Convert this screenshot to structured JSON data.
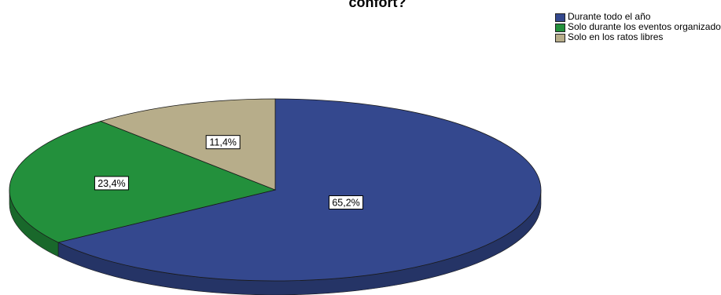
{
  "chart_data": {
    "type": "pie",
    "title": "confort?",
    "legend_position": "top-right",
    "categories": [
      "Durante todo el año",
      "Solo durante los eventos organizados",
      "Solo en los ratos libres"
    ],
    "values": [
      65.2,
      23.4,
      11.4
    ],
    "data_labels": [
      "65,2%",
      "23,4%",
      "11,4%"
    ],
    "colors": [
      "#34488e",
      "#23903c",
      "#b7ad8a"
    ]
  }
}
